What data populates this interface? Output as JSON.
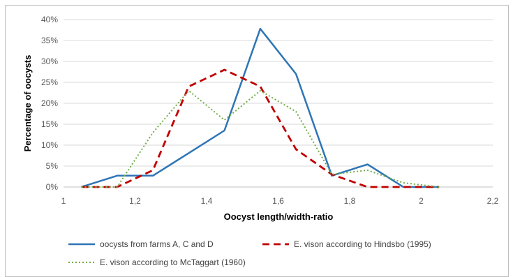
{
  "chart_data": {
    "type": "line",
    "title": "",
    "xlabel": "Oocyst length/width-ratio",
    "ylabel": "Percentage of oocysts",
    "xlim": [
      1,
      2.2
    ],
    "ylim": [
      0,
      40
    ],
    "x_ticks": [
      "1",
      "1,2",
      "1,4",
      "1,6",
      "1,8",
      "2",
      "2,2"
    ],
    "y_ticks": [
      "0%",
      "5%",
      "10%",
      "15%",
      "20%",
      "25%",
      "30%",
      "35%",
      "40%"
    ],
    "grid": "horizontal",
    "legend_position": "bottom",
    "series": [
      {
        "name": "oocysts from farms A, C and D",
        "color": "#2e75b6",
        "style": "solid",
        "x": [
          1.05,
          1.15,
          1.25,
          1.35,
          1.45,
          1.55,
          1.65,
          1.75,
          1.85,
          1.95,
          2.05
        ],
        "values": [
          0,
          2.7,
          2.7,
          8.1,
          13.5,
          37.8,
          27.0,
          2.7,
          5.4,
          0,
          0
        ]
      },
      {
        "name": "E. vison according to Hindsbo (1995)",
        "color": "#c00000",
        "style": "dashed",
        "x": [
          1.05,
          1.15,
          1.25,
          1.35,
          1.45,
          1.55,
          1.65,
          1.75,
          1.85,
          1.95,
          2.05
        ],
        "values": [
          0,
          0,
          4,
          24,
          28,
          24,
          9,
          3,
          0,
          0,
          0
        ]
      },
      {
        "name": "E. vison according to McTaggart (1960)",
        "color": "#70ad47",
        "style": "dotted",
        "x": [
          1.05,
          1.15,
          1.25,
          1.35,
          1.45,
          1.55,
          1.65,
          1.75,
          1.85,
          1.95,
          2.05
        ],
        "values": [
          0,
          0,
          13,
          23,
          16,
          23,
          18,
          3,
          4,
          1,
          0
        ]
      }
    ]
  }
}
